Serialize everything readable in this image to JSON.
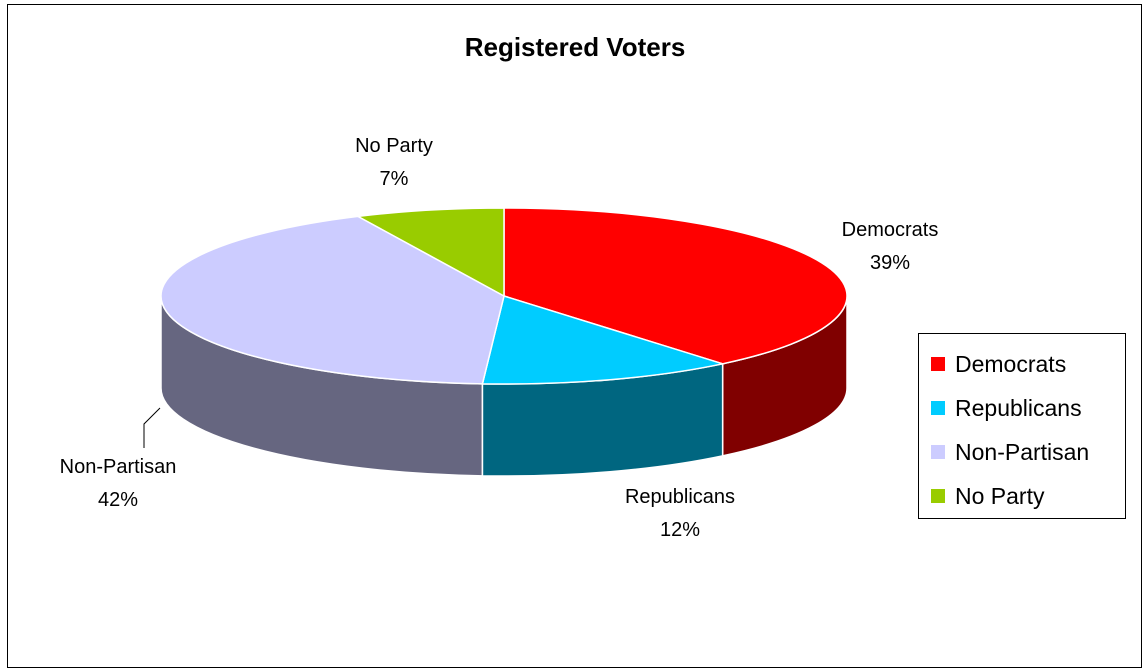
{
  "chart_data": {
    "type": "pie",
    "title": "Registered Voters",
    "series": [
      {
        "categories": [
          "Democrats",
          "Republicans",
          "Non-Partisan",
          "No Party"
        ],
        "values": [
          39,
          12,
          42,
          7
        ],
        "labels": [
          "39%",
          "12%",
          "42%",
          "7%"
        ]
      }
    ],
    "colors": {
      "Democrats": "#ff0000",
      "Republicans": "#00ccff",
      "Non-Partisan": "#ccccff",
      "No Party": "#99cc00"
    },
    "side_colors": {
      "Democrats": "#800000",
      "Republicans": "#006680",
      "Non-Partisan": "#666680",
      "No Party": "#4d6600"
    },
    "legend": {
      "position": "right",
      "items": [
        "Democrats",
        "Republicans",
        "Non-Partisan",
        "No Party"
      ]
    },
    "style": "3d"
  }
}
